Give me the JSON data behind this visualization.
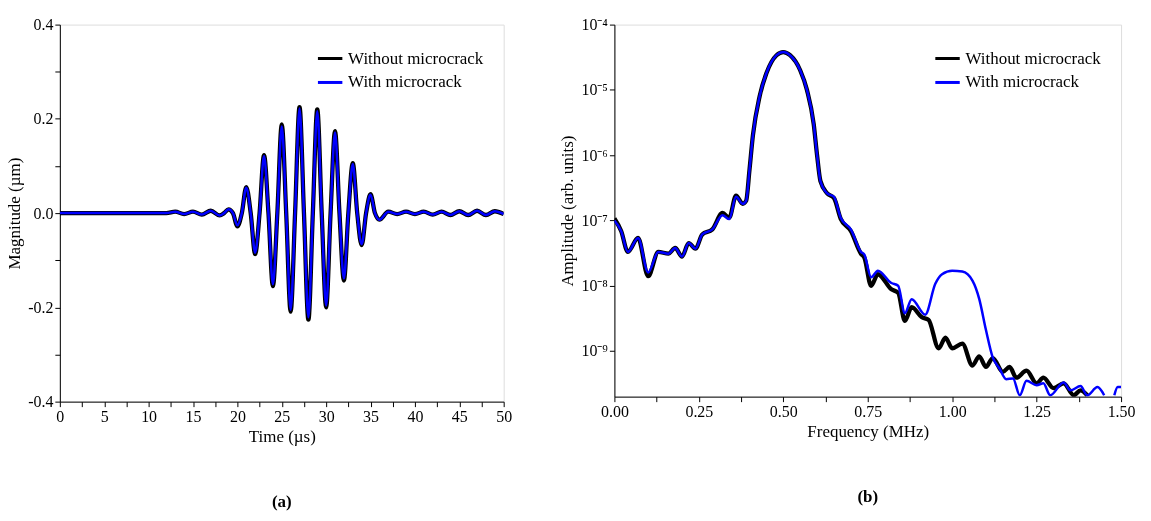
{
  "chart_data": [
    {
      "type": "line",
      "title": "(a)",
      "xlabel": "Time (µs)",
      "ylabel": "Magnitude (µm)",
      "legend": "top right",
      "x": [
        0,
        12,
        13,
        14,
        15,
        16,
        17,
        18,
        18.5,
        19,
        19.5,
        20,
        20.5,
        21,
        21.5,
        22,
        22.5,
        23,
        23.5,
        24,
        24.5,
        25,
        25.5,
        26,
        26.5,
        27,
        27.5,
        28,
        28.5,
        29,
        29.5,
        30,
        30.5,
        31,
        31.5,
        32,
        32.5,
        33,
        33.5,
        34,
        34.5,
        35,
        35.5,
        36,
        37,
        38,
        39,
        40,
        41,
        42,
        43,
        44,
        45,
        46,
        47,
        48,
        49,
        50
      ],
      "series": [
        {
          "name": "Without microcrack",
          "color": "#000000",
          "values": [
            0,
            0,
            0.003,
            -0.002,
            0.003,
            -0.003,
            0.005,
            -0.005,
            0,
            0.008,
            0,
            -0.028,
            0,
            0.055,
            0,
            -0.087,
            0,
            0.123,
            0,
            -0.155,
            0,
            0.188,
            0,
            -0.209,
            0,
            0.225,
            0,
            -0.226,
            0,
            0.22,
            0,
            -0.2,
            0,
            0.174,
            0,
            -0.143,
            0,
            0.106,
            0,
            -0.068,
            0,
            0.04,
            0,
            -0.014,
            0.003,
            -0.002,
            0.003,
            -0.002,
            0.003,
            -0.003,
            0.003,
            -0.004,
            0.004,
            -0.004,
            0.005,
            -0.004,
            0.004,
            -0.002
          ]
        },
        {
          "name": "With microcrack",
          "color": "#0000ff",
          "values": [
            0,
            0,
            0.003,
            -0.002,
            0.003,
            -0.003,
            0.005,
            -0.005,
            0,
            0.008,
            0,
            -0.026,
            0,
            0.054,
            0,
            -0.084,
            0,
            0.121,
            0,
            -0.151,
            0,
            0.184,
            0,
            -0.205,
            0,
            0.222,
            0,
            -0.221,
            0,
            0.216,
            0,
            -0.196,
            0,
            0.171,
            0,
            -0.139,
            0,
            0.104,
            0,
            -0.066,
            0,
            0.039,
            0,
            -0.014,
            0.003,
            -0.002,
            0.003,
            -0.002,
            0.003,
            -0.003,
            0.003,
            -0.004,
            0.004,
            -0.004,
            0.005,
            -0.004,
            0.004,
            -0.002
          ]
        }
      ],
      "xlim": [
        0,
        50
      ],
      "xticks": [
        0,
        {
          "value": 2.5,
          "label": null
        },
        5,
        {
          "value": 7.5,
          "label": null
        },
        10,
        {
          "value": 12.5,
          "label": null
        },
        15,
        {
          "value": 17.5,
          "label": null
        },
        20,
        {
          "value": 22.5,
          "label": null
        },
        25,
        {
          "value": 27.5,
          "label": null
        },
        30,
        {
          "value": 32.5,
          "label": null
        },
        35,
        {
          "value": 37.5,
          "label": null
        },
        40,
        {
          "value": 42.5,
          "label": null
        },
        45,
        {
          "value": 47.5,
          "label": null
        },
        50
      ],
      "ylim": [
        -0.4,
        0.4
      ],
      "yticks": [
        -0.4,
        {
          "value": -0.3,
          "label": null
        },
        -0.2,
        {
          "value": -0.1,
          "label": null
        },
        {
          "value": 0,
          "label": "0.0"
        },
        {
          "value": 0.1,
          "label": null
        },
        0.2,
        {
          "value": 0.3,
          "label": null
        },
        0.4
      ]
    },
    {
      "type": "line",
      "title": "(b)",
      "xlabel": "Frequency (MHz)",
      "ylabel": "Amplitude (arb. units)",
      "legend": "top right",
      "log": "y",
      "series": [
        {
          "name": "Without microcrack",
          "color": "#000000",
          "x": [
            0,
            0.02,
            0.04,
            0.07,
            0.1,
            0.13,
            0.16,
            0.18,
            0.2,
            0.22,
            0.24,
            0.26,
            0.29,
            0.32,
            0.34,
            0.36,
            0.38,
            0.39,
            0.4,
            0.41,
            0.43,
            0.45,
            0.48,
            0.5,
            0.52,
            0.55,
            0.57,
            0.59,
            0.6,
            0.61,
            0.63,
            0.65,
            0.67,
            0.7,
            0.73,
            0.74,
            0.76,
            0.78,
            0.82,
            0.84,
            0.86,
            0.88,
            0.91,
            0.93,
            0.96,
            0.98,
            1.0,
            1.03,
            1.06,
            1.08,
            1.1,
            1.12,
            1.15,
            1.17,
            1.19,
            1.22,
            1.25,
            1.27,
            1.3,
            1.33,
            1.36,
            1.38,
            1.4
          ],
          "values": [
            1.07e-07,
            6.9e-08,
            3.3e-08,
            5.4e-08,
            1.4e-08,
            3.3e-08,
            3.1e-08,
            3.8e-08,
            2.8e-08,
            4.5e-08,
            3.7e-08,
            6.1e-08,
            7.3e-08,
            1.3e-07,
            1.1e-07,
            2.4e-07,
            1.8e-07,
            2e-07,
            6e-07,
            2e-06,
            8e-06,
            1.8e-05,
            3.4e-05,
            3.8e-05,
            3.4e-05,
            2e-05,
            1e-05,
            3e-06,
            1e-06,
            4e-07,
            2.6e-07,
            2.2e-07,
            1.06e-07,
            6.9e-08,
            3.1e-08,
            2.7e-08,
            1e-08,
            1.5e-08,
            8.8e-09,
            7.8e-09,
            2.9e-09,
            4.7e-09,
            3.3e-09,
            3e-09,
            1.1e-09,
            1.6e-09,
            1.1e-09,
            1.3e-09,
            6e-10,
            8.3e-10,
            5.7e-10,
            7.8e-10,
            4.8e-10,
            5.7e-10,
            3.9e-10,
            5e-10,
            3.2e-10,
            3.9e-10,
            2.7e-10,
            3.2e-10,
            2.1e-10,
            2.5e-10,
            2.1e-10
          ]
        },
        {
          "name": "With microcrack",
          "color": "#0000ff",
          "x": [
            0,
            0.02,
            0.04,
            0.07,
            0.1,
            0.13,
            0.16,
            0.18,
            0.2,
            0.22,
            0.24,
            0.26,
            0.29,
            0.32,
            0.34,
            0.36,
            0.38,
            0.39,
            0.4,
            0.41,
            0.43,
            0.45,
            0.48,
            0.5,
            0.52,
            0.55,
            0.57,
            0.59,
            0.6,
            0.61,
            0.63,
            0.65,
            0.67,
            0.7,
            0.73,
            0.74,
            0.76,
            0.78,
            0.82,
            0.84,
            0.86,
            0.88,
            0.92,
            0.95,
            0.97,
            1.0,
            1.03,
            1.06,
            1.08,
            1.1,
            1.12,
            1.14,
            1.16,
            1.18,
            1.2,
            1.22,
            1.25,
            1.27,
            1.29,
            1.33,
            1.35,
            1.38,
            1.4,
            1.43,
            1.45,
            1.465,
            1.48,
            1.49,
            1.5
          ],
          "values": [
            1e-07,
            6.9e-08,
            3.3e-08,
            5.4e-08,
            1.6e-08,
            3.3e-08,
            3.1e-08,
            3.8e-08,
            2.8e-08,
            4.5e-08,
            3.7e-08,
            6.1e-08,
            7.3e-08,
            1.2e-07,
            1.05e-07,
            2.3e-07,
            1.8e-07,
            2e-07,
            6e-07,
            2e-06,
            8e-06,
            1.8e-05,
            3.4e-05,
            3.8e-05,
            3.4e-05,
            2e-05,
            1e-05,
            3e-06,
            1e-06,
            4e-07,
            2.6e-07,
            2.3e-07,
            1.1e-07,
            7.3e-08,
            3.3e-08,
            3e-08,
            1.35e-08,
            1.7e-08,
            1.1e-08,
            1e-08,
            3.8e-09,
            6.2e-09,
            3.6e-09,
            1.07e-08,
            1.5e-08,
            1.7e-08,
            1.65e-08,
            1.2e-08,
            6.3e-09,
            2.1e-09,
            8e-10,
            5.4e-10,
            3.7e-10,
            3.8e-10,
            2.1e-10,
            3.5e-10,
            3e-10,
            3.2e-10,
            2.1e-10,
            3.3e-10,
            2.5e-10,
            2.9e-10,
            2.1e-10,
            2.8e-10,
            2.1e-10,
            null,
            2.1e-10,
            2.8e-10,
            2.8e-10
          ]
        }
      ],
      "xlim": [
        0,
        1.5
      ],
      "xticks": [
        {
          "value": 0,
          "label": "0.00"
        },
        {
          "value": 0.125,
          "label": null
        },
        0.25,
        {
          "value": 0.375,
          "label": null
        },
        {
          "value": 0.5,
          "label": "0.50"
        },
        {
          "value": 0.625,
          "label": null
        },
        0.75,
        {
          "value": 0.875,
          "label": null
        },
        {
          "value": 1.0,
          "label": "1.00"
        },
        {
          "value": 1.125,
          "label": null
        },
        1.25,
        {
          "value": 1.375,
          "label": null
        },
        {
          "value": 1.5,
          "label": "1.50"
        }
      ],
      "ylim": [
        2e-10,
        0.0001
      ],
      "yticks": [
        {
          "value": 1e-09,
          "label": "10⁻⁹"
        },
        {
          "value": 1e-08,
          "label": "10⁻⁸"
        },
        {
          "value": 1e-07,
          "label": "10⁻⁷"
        },
        {
          "value": 1e-06,
          "label": "10⁻⁶"
        },
        {
          "value": 1e-05,
          "label": "10⁻⁵"
        },
        {
          "value": 0.0001,
          "label": "10⁻⁴"
        }
      ]
    }
  ]
}
